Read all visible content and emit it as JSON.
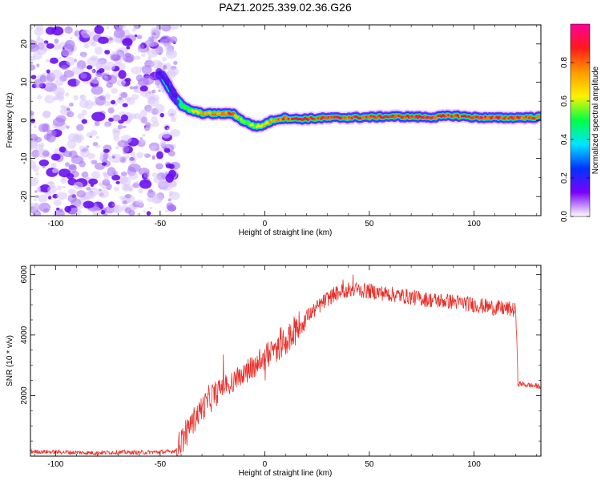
{
  "figure": {
    "title": "PAZ1.2025.339.02.36.G26"
  },
  "colors": {
    "snr_line": "#e8302a",
    "noise": "#7b2cf0",
    "colorbar": [
      "#ffffff",
      "#7b00ff",
      "#0033ff",
      "#00e5ff",
      "#00ff44",
      "#fff200",
      "#ff9900",
      "#ff1a1a",
      "#ff0099"
    ]
  },
  "chart_data": [
    {
      "type": "heatmap",
      "title": "PAZ1.2025.339.02.36.G26",
      "xlabel": "Height of straight line (km)",
      "ylabel": "Frequency (Hz)",
      "xlim": [
        -112,
        132
      ],
      "ylim": [
        -25,
        25
      ],
      "xticks": [
        -100,
        -50,
        0,
        50,
        100
      ],
      "yticks": [
        -20,
        -10,
        0,
        10,
        20
      ],
      "colorbar": {
        "label": "Normalized spectral amplitude",
        "range": [
          0.0,
          1.0
        ],
        "ticks": [
          "0.0",
          "0.2",
          "0.4",
          "0.6",
          "0.8"
        ]
      },
      "noise_region_x": [
        -112,
        -44
      ],
      "ridge": {
        "x": [
          -50,
          -47,
          -44,
          -42,
          -40,
          -38,
          -35,
          -30,
          -25,
          -20,
          -15,
          -12,
          -8,
          -5,
          -2,
          0,
          5,
          10,
          15,
          20,
          30,
          40,
          50,
          60,
          70,
          80,
          90,
          100,
          110,
          120,
          132
        ],
        "y": [
          12,
          10,
          7,
          5.5,
          4,
          3.2,
          2.5,
          1.8,
          1.7,
          1.7,
          1.7,
          0.3,
          -0.8,
          -1.5,
          -1.6,
          -1.0,
          0.2,
          0.6,
          0.3,
          0.4,
          0.6,
          0.7,
          0.8,
          1.0,
          0.9,
          0.8,
          1.2,
          0.8,
          0.6,
          0.7,
          0.8
        ],
        "amplitude": [
          0.15,
          0.2,
          0.35,
          0.45,
          0.5,
          0.55,
          0.6,
          0.75,
          0.8,
          0.8,
          0.85,
          0.55,
          0.6,
          0.6,
          0.65,
          0.7,
          0.85,
          0.85,
          0.9,
          0.9,
          0.9,
          0.88,
          0.92,
          0.9,
          0.92,
          0.93,
          0.88,
          0.9,
          0.9,
          0.88,
          0.85
        ]
      }
    },
    {
      "type": "line",
      "xlabel": "Height of straight line (km)",
      "ylabel": "SNR (10 * v/v)",
      "xlim": [
        -112,
        132
      ],
      "ylim": [
        0,
        6300
      ],
      "xticks": [
        -100,
        -50,
        0,
        50,
        100
      ],
      "yticks": [
        2000,
        4000,
        6000
      ],
      "series": [
        {
          "name": "SNR",
          "x": [
            -112,
            -100,
            -90,
            -80,
            -70,
            -60,
            -50,
            -45,
            -42,
            -40,
            -35,
            -30,
            -25,
            -20,
            -15,
            -10,
            -5,
            0,
            5,
            10,
            15,
            20,
            25,
            30,
            35,
            40,
            50,
            60,
            70,
            80,
            90,
            100,
            110,
            118,
            120,
            121,
            125,
            132
          ],
          "y": [
            150,
            140,
            120,
            110,
            130,
            120,
            140,
            150,
            200,
            500,
            1100,
            1600,
            2000,
            2300,
            2500,
            2700,
            3000,
            3200,
            3500,
            3800,
            4200,
            4600,
            4900,
            5200,
            5400,
            5500,
            5450,
            5350,
            5250,
            5150,
            5100,
            5000,
            4900,
            4850,
            4800,
            2400,
            2350,
            2300
          ]
        }
      ]
    }
  ]
}
